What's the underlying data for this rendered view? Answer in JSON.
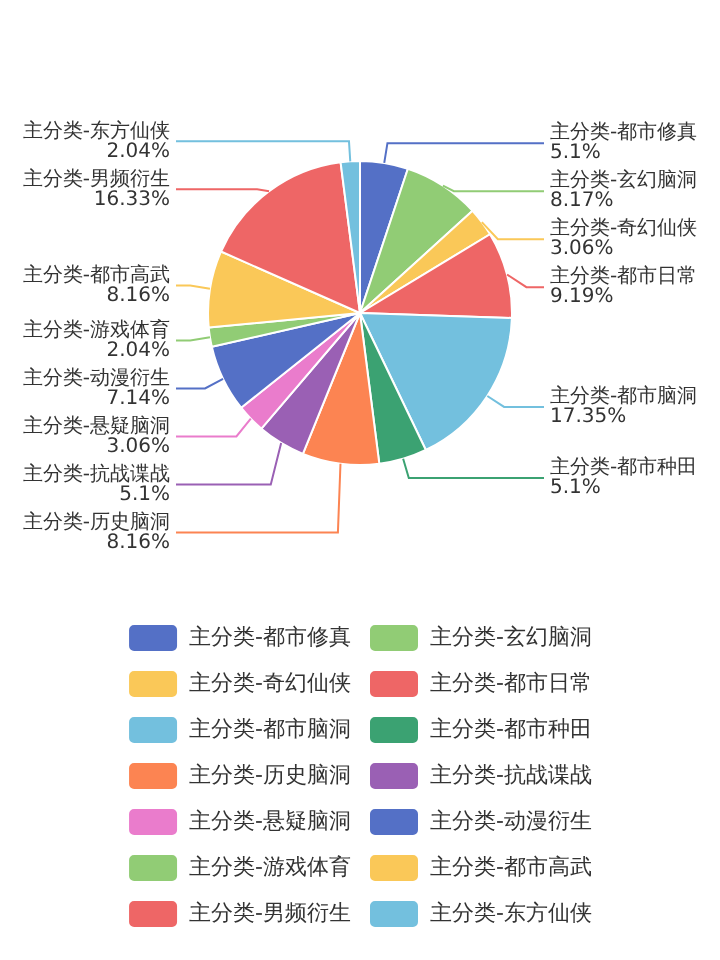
{
  "chart_data": {
    "type": "pie",
    "categories": [
      "主分类-都市修真",
      "主分类-玄幻脑洞",
      "主分类-奇幻仙侠",
      "主分类-都市日常",
      "主分类-都市脑洞",
      "主分类-都市种田",
      "主分类-历史脑洞",
      "主分类-抗战谍战",
      "主分类-悬疑脑洞",
      "主分类-动漫衍生",
      "主分类-游戏体育",
      "主分类-都市高武",
      "主分类-男频衍生",
      "主分类-东方仙侠"
    ],
    "values": [
      5.1,
      8.17,
      3.06,
      9.19,
      17.35,
      5.1,
      8.16,
      5.1,
      3.06,
      7.14,
      2.04,
      8.16,
      16.33,
      2.04
    ],
    "value_labels": [
      "5.1%",
      "8.17%",
      "3.06%",
      "9.19%",
      "17.35%",
      "5.1%",
      "8.16%",
      "5.1%",
      "3.06%",
      "7.14%",
      "2.04%",
      "8.16%",
      "16.33%",
      "2.04%"
    ],
    "colors": [
      "#5470c6",
      "#91cc75",
      "#fac858",
      "#ee6666",
      "#73c0de",
      "#3ba272",
      "#fc8452",
      "#9a60b4",
      "#ea7ccc",
      "#5470c6",
      "#91cc75",
      "#fac858",
      "#ee6666",
      "#73c0de"
    ],
    "legend": "bottom"
  }
}
